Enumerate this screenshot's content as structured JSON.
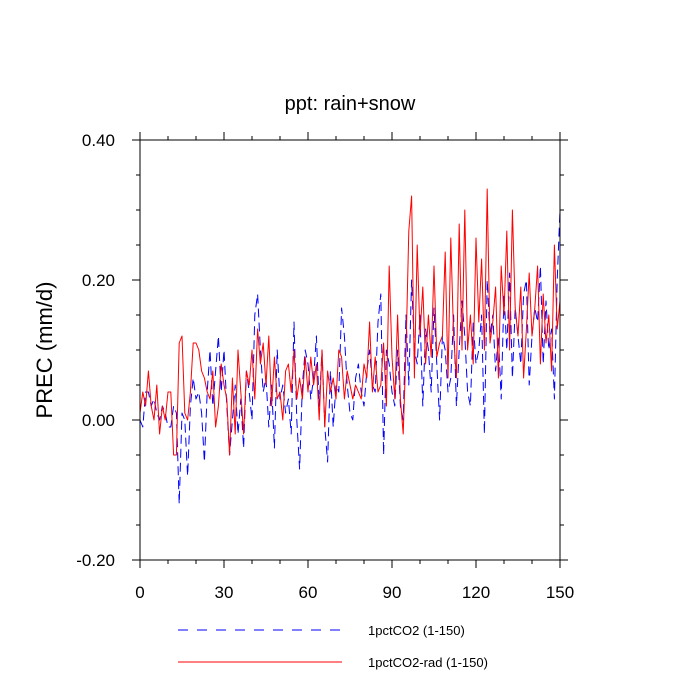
{
  "chart_data": {
    "type": "line",
    "title": "ppt: rain+snow",
    "xlabel": "",
    "ylabel": "PREC  (mm/d)",
    "xlim": [
      0,
      150
    ],
    "ylim": [
      -0.2,
      0.4
    ],
    "xticks": [
      0,
      30,
      60,
      90,
      120,
      150
    ],
    "xtick_labels": [
      "0",
      "30",
      "60",
      "90",
      "120",
      "150"
    ],
    "yticks": [
      -0.2,
      0.0,
      0.2,
      0.4
    ],
    "ytick_labels": [
      "-0.20",
      "0.00",
      "0.20",
      "0.40"
    ],
    "grid": false,
    "legend_position": "bottom",
    "series": [
      {
        "name": "1pctCO2 (1-150)",
        "color": "#0000ff",
        "style": "dashed",
        "x_start": 0,
        "x_step": 1,
        "values": [
          0.0,
          -0.01,
          0.04,
          0.04,
          0.02,
          0.03,
          0.01,
          0.0,
          0.02,
          0.01,
          -0.01,
          -0.01,
          0.02,
          0.01,
          -0.12,
          0.01,
          0.0,
          -0.08,
          0.02,
          0.06,
          0.03,
          0.04,
          0.01,
          -0.06,
          0.04,
          0.1,
          0.02,
          0.07,
          0.12,
          0.04,
          0.1,
          0.02,
          -0.05,
          0.0,
          0.05,
          -0.02,
          0.03,
          -0.04,
          0.07,
          0.04,
          0.0,
          0.15,
          0.18,
          0.1,
          0.04,
          0.06,
          -0.01,
          0.05,
          -0.04,
          0.1,
          0.03,
          0.05,
          0.01,
          0.03,
          -0.02,
          0.14,
          0.0,
          -0.07,
          0.05,
          0.1,
          0.08,
          0.03,
          0.06,
          0.12,
          0.02,
          0.1,
          -0.01,
          -0.06,
          0.07,
          -0.01,
          0.05,
          0.04,
          0.16,
          0.12,
          0.05,
          0.01,
          0.0,
          0.06,
          0.08,
          0.04,
          0.02,
          0.07,
          0.1,
          0.05,
          0.04,
          0.14,
          0.18,
          -0.05,
          0.1,
          0.08,
          0.04,
          0.02,
          0.1,
          0.02,
          0.0,
          0.15,
          0.05,
          0.2,
          0.1,
          0.08,
          0.15,
          0.02,
          0.13,
          0.1,
          0.04,
          0.16,
          0.08,
          0.0,
          0.12,
          0.1,
          0.04,
          0.06,
          0.15,
          0.02,
          0.1,
          0.17,
          0.12,
          0.04,
          0.02,
          0.14,
          0.08,
          0.1,
          0.15,
          -0.02,
          0.2,
          0.12,
          0.15,
          0.07,
          0.12,
          0.03,
          0.18,
          0.1,
          0.21,
          0.06,
          0.16,
          0.12,
          0.08,
          0.18,
          0.2,
          0.05,
          0.12,
          0.16,
          0.14,
          0.22,
          0.08,
          0.17,
          0.1,
          0.13,
          0.03,
          0.2,
          0.3
        ]
      },
      {
        "name": "1pctCO2-rad (1-150)",
        "color": "#ff0000",
        "style": "solid",
        "x_start": 0,
        "x_step": 1,
        "values": [
          0.01,
          0.04,
          0.02,
          0.07,
          0.02,
          0.0,
          0.05,
          -0.02,
          0.02,
          0.0,
          0.04,
          0.04,
          -0.05,
          -0.05,
          0.11,
          0.12,
          0.01,
          0.0,
          0.04,
          0.11,
          0.11,
          0.1,
          0.07,
          0.06,
          0.04,
          0.03,
          0.07,
          -0.01,
          0.02,
          0.08,
          0.05,
          0.03,
          -0.05,
          0.06,
          -0.02,
          0.1,
          0.04,
          -0.02,
          0.07,
          0.05,
          0.1,
          0.03,
          0.13,
          0.08,
          0.11,
          0.05,
          0.12,
          0.02,
          0.09,
          0.03,
          0.04,
          0.0,
          0.07,
          0.08,
          0.04,
          0.1,
          0.03,
          0.06,
          0.03,
          0.09,
          0.04,
          0.09,
          0.05,
          0.08,
          0.0,
          0.1,
          -0.01,
          0.07,
          0.04,
          0.06,
          0.03,
          0.1,
          0.09,
          0.03,
          0.07,
          0.05,
          0.03,
          0.05,
          0.04,
          0.03,
          0.08,
          0.06,
          0.14,
          0.04,
          0.09,
          0.04,
          0.05,
          0.11,
          0.02,
          0.22,
          0.09,
          0.03,
          0.15,
          0.03,
          -0.02,
          0.1,
          0.27,
          0.32,
          0.06,
          0.25,
          0.12,
          0.19,
          0.08,
          0.15,
          0.09,
          0.22,
          0.09,
          0.11,
          0.12,
          0.24,
          0.06,
          0.26,
          0.12,
          0.06,
          0.28,
          0.1,
          0.3,
          0.1,
          0.15,
          0.08,
          0.26,
          0.14,
          0.23,
          0.1,
          0.33,
          0.11,
          0.14,
          0.19,
          0.06,
          0.22,
          0.15,
          0.27,
          0.1,
          0.3,
          0.16,
          0.12,
          0.19,
          0.06,
          0.13,
          0.21,
          0.12,
          0.16,
          0.22,
          0.08,
          0.18,
          0.11,
          0.15,
          0.07,
          0.25,
          0.13,
          0.17
        ]
      }
    ]
  }
}
